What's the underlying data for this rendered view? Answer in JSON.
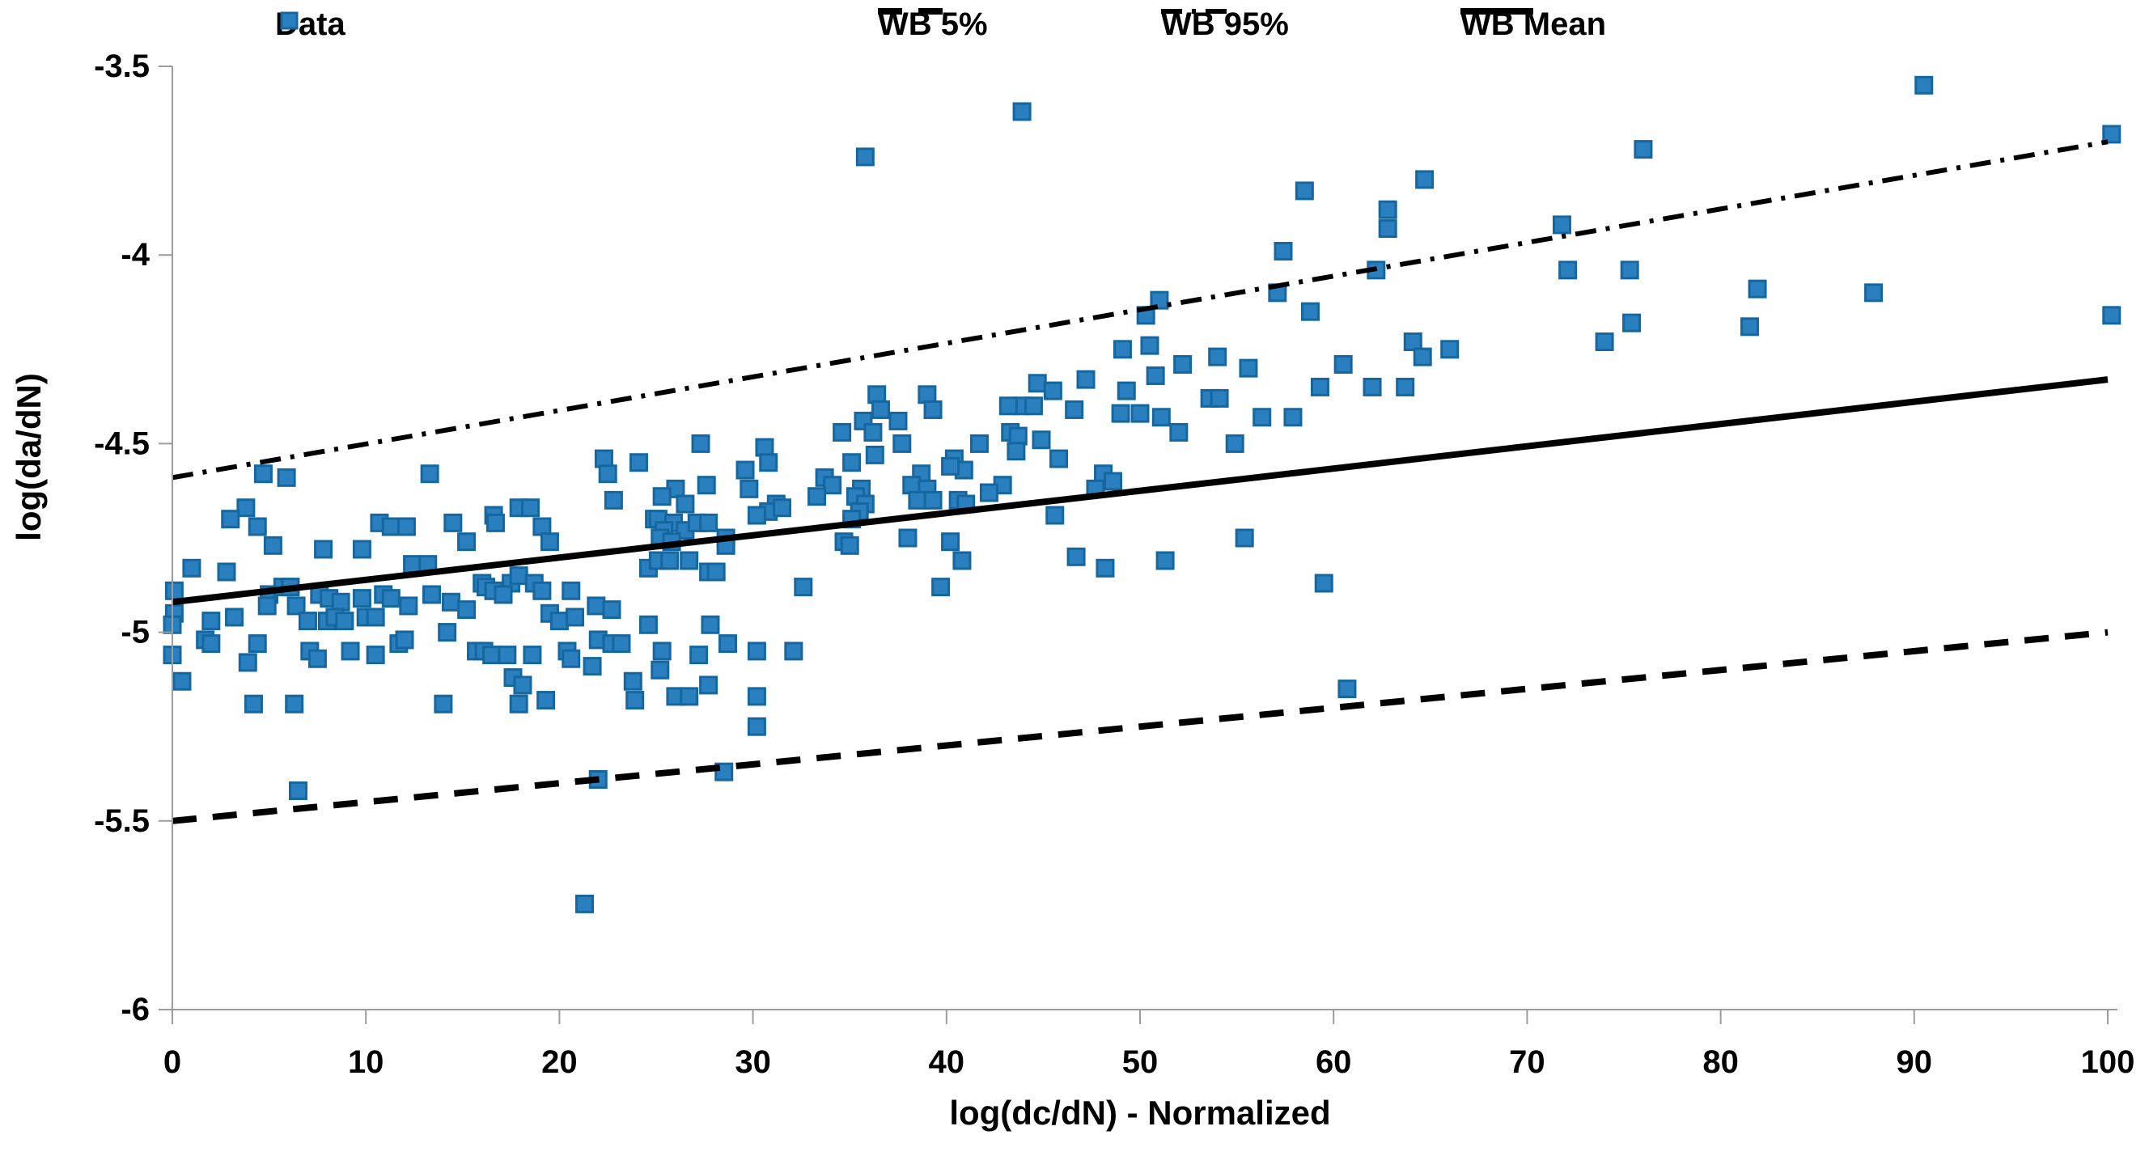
{
  "chart_data": {
    "type": "scatter",
    "title": "",
    "xlabel": "log(dc/dN) - Normalized",
    "ylabel": "log(da/dN)",
    "xlim": [
      0,
      100
    ],
    "ylim": [
      -6,
      -3.5
    ],
    "xtick_labels": [
      "0",
      "10",
      "20",
      "30",
      "40",
      "50",
      "60",
      "70",
      "80",
      "90",
      "100"
    ],
    "xticks": [
      0,
      10,
      20,
      30,
      40,
      50,
      60,
      70,
      80,
      90,
      100
    ],
    "ytick_labels": [
      "-3.5",
      "-4",
      "-4.5",
      "-5",
      "-5.5",
      "-6"
    ],
    "yticks": [
      -3.5,
      -4,
      -4.5,
      -5,
      -5.5,
      -6
    ],
    "grid": false,
    "legend_position": "top",
    "axis_color": "#9c9c9c",
    "text_color": "#000000",
    "series": [
      {
        "name": "Data",
        "kind": "scatter",
        "marker": "square",
        "marker_fill": "#2a7fbe",
        "marker_edge": "#16679f",
        "points": [
          [
            4.7,
            -4.58
          ],
          [
            5.9,
            -4.59
          ],
          [
            13.3,
            -4.58
          ],
          [
            22.3,
            -4.54
          ],
          [
            24.1,
            -4.55
          ],
          [
            22.5,
            -4.58
          ],
          [
            3.8,
            -4.67
          ],
          [
            3.0,
            -4.7
          ],
          [
            4.4,
            -4.72
          ],
          [
            5.2,
            -4.77
          ],
          [
            7.8,
            -4.78
          ],
          [
            9.8,
            -4.78
          ],
          [
            1.0,
            -4.83
          ],
          [
            2.8,
            -4.84
          ],
          [
            10.7,
            -4.71
          ],
          [
            11.3,
            -4.72
          ],
          [
            12.1,
            -4.72
          ],
          [
            12.4,
            -4.82
          ],
          [
            13.2,
            -4.82
          ],
          [
            14.5,
            -4.71
          ],
          [
            15.2,
            -4.76
          ],
          [
            16.6,
            -4.69
          ],
          [
            16.7,
            -4.71
          ],
          [
            17.9,
            -4.67
          ],
          [
            18.5,
            -4.67
          ],
          [
            19.1,
            -4.72
          ],
          [
            19.5,
            -4.76
          ],
          [
            0.1,
            -4.89
          ],
          [
            0.1,
            -4.95
          ],
          [
            0.0,
            -4.98
          ],
          [
            5.0,
            -4.9
          ],
          [
            5.7,
            -4.88
          ],
          [
            6.1,
            -4.88
          ],
          [
            4.9,
            -4.93
          ],
          [
            6.4,
            -4.93
          ],
          [
            7.6,
            -4.9
          ],
          [
            8.1,
            -4.91
          ],
          [
            8.7,
            -4.92
          ],
          [
            9.8,
            -4.91
          ],
          [
            10.9,
            -4.9
          ],
          [
            11.3,
            -4.91
          ],
          [
            12.2,
            -4.93
          ],
          [
            13.4,
            -4.9
          ],
          [
            14.4,
            -4.92
          ],
          [
            15.2,
            -4.94
          ],
          [
            2.0,
            -4.97
          ],
          [
            3.2,
            -4.96
          ],
          [
            7.0,
            -4.97
          ],
          [
            8.0,
            -4.97
          ],
          [
            8.4,
            -4.96
          ],
          [
            8.9,
            -4.97
          ],
          [
            10.0,
            -4.96
          ],
          [
            10.5,
            -4.96
          ],
          [
            14.2,
            -5.0
          ],
          [
            16.0,
            -4.87
          ],
          [
            16.2,
            -4.88
          ],
          [
            16.6,
            -4.89
          ],
          [
            17.5,
            -4.87
          ],
          [
            17.9,
            -4.85
          ],
          [
            18.7,
            -4.87
          ],
          [
            19.1,
            -4.89
          ],
          [
            17.1,
            -4.9
          ],
          [
            19.5,
            -4.95
          ],
          [
            20.0,
            -4.97
          ],
          [
            20.6,
            -4.89
          ],
          [
            20.8,
            -4.96
          ],
          [
            0.0,
            -5.06
          ],
          [
            0.5,
            -5.13
          ],
          [
            1.7,
            -5.02
          ],
          [
            2.0,
            -5.03
          ],
          [
            4.4,
            -5.03
          ],
          [
            3.9,
            -5.08
          ],
          [
            4.2,
            -5.19
          ],
          [
            6.3,
            -5.19
          ],
          [
            7.1,
            -5.05
          ],
          [
            7.5,
            -5.07
          ],
          [
            9.2,
            -5.05
          ],
          [
            10.5,
            -5.06
          ],
          [
            11.7,
            -5.03
          ],
          [
            12.0,
            -5.02
          ],
          [
            14.0,
            -5.19
          ],
          [
            15.7,
            -5.05
          ],
          [
            16.1,
            -5.05
          ],
          [
            16.5,
            -5.06
          ],
          [
            17.3,
            -5.06
          ],
          [
            18.6,
            -5.06
          ],
          [
            17.6,
            -5.12
          ],
          [
            18.1,
            -5.14
          ],
          [
            17.9,
            -5.19
          ],
          [
            19.3,
            -5.18
          ],
          [
            20.4,
            -5.05
          ],
          [
            20.6,
            -5.07
          ],
          [
            6.5,
            -5.42
          ],
          [
            22.8,
            -4.65
          ],
          [
            24.9,
            -4.7
          ],
          [
            21.9,
            -4.93
          ],
          [
            22.7,
            -4.94
          ],
          [
            22.0,
            -5.02
          ],
          [
            22.7,
            -5.03
          ],
          [
            23.2,
            -5.03
          ],
          [
            21.7,
            -5.09
          ],
          [
            23.8,
            -5.13
          ],
          [
            23.9,
            -5.18
          ],
          [
            24.6,
            -4.83
          ],
          [
            24.6,
            -4.98
          ],
          [
            21.3,
            -5.72
          ],
          [
            22.0,
            -5.39
          ],
          [
            36.4,
            -4.37
          ],
          [
            39.0,
            -4.37
          ],
          [
            39.3,
            -4.41
          ],
          [
            36.6,
            -4.41
          ],
          [
            35.7,
            -4.44
          ],
          [
            37.5,
            -4.44
          ],
          [
            34.6,
            -4.47
          ],
          [
            36.2,
            -4.47
          ],
          [
            37.7,
            -4.5
          ],
          [
            27.3,
            -4.5
          ],
          [
            44.7,
            -4.34
          ],
          [
            43.9,
            -4.4
          ],
          [
            44.5,
            -4.4
          ],
          [
            45.5,
            -4.36
          ],
          [
            47.2,
            -4.33
          ],
          [
            43.2,
            -4.4
          ],
          [
            46.6,
            -4.41
          ],
          [
            49.3,
            -4.36
          ],
          [
            49.0,
            -4.42
          ],
          [
            50.0,
            -4.42
          ],
          [
            43.3,
            -4.47
          ],
          [
            43.7,
            -4.48
          ],
          [
            44.9,
            -4.49
          ],
          [
            41.7,
            -4.5
          ],
          [
            43.6,
            -4.52
          ],
          [
            45.8,
            -4.54
          ],
          [
            40.4,
            -4.54
          ],
          [
            40.9,
            -4.57
          ],
          [
            48.1,
            -4.58
          ],
          [
            48.6,
            -4.6
          ],
          [
            30.6,
            -4.51
          ],
          [
            30.8,
            -4.55
          ],
          [
            29.6,
            -4.57
          ],
          [
            29.8,
            -4.62
          ],
          [
            27.6,
            -4.61
          ],
          [
            26.0,
            -4.62
          ],
          [
            26.5,
            -4.66
          ],
          [
            25.3,
            -4.64
          ],
          [
            31.2,
            -4.66
          ],
          [
            30.8,
            -4.68
          ],
          [
            31.5,
            -4.67
          ],
          [
            30.2,
            -4.69
          ],
          [
            35.1,
            -4.55
          ],
          [
            36.3,
            -4.53
          ],
          [
            33.7,
            -4.59
          ],
          [
            34.1,
            -4.61
          ],
          [
            33.3,
            -4.64
          ],
          [
            35.6,
            -4.62
          ],
          [
            35.3,
            -4.64
          ],
          [
            35.8,
            -4.66
          ],
          [
            35.5,
            -4.68
          ],
          [
            35.1,
            -4.7
          ],
          [
            38.7,
            -4.58
          ],
          [
            38.2,
            -4.61
          ],
          [
            39.0,
            -4.62
          ],
          [
            38.5,
            -4.65
          ],
          [
            39.3,
            -4.65
          ],
          [
            40.2,
            -4.56
          ],
          [
            42.9,
            -4.61
          ],
          [
            42.2,
            -4.63
          ],
          [
            40.6,
            -4.65
          ],
          [
            41.0,
            -4.66
          ],
          [
            25.1,
            -4.7
          ],
          [
            25.9,
            -4.71
          ],
          [
            25.4,
            -4.73
          ],
          [
            26.5,
            -4.73
          ],
          [
            27.1,
            -4.71
          ],
          [
            27.7,
            -4.71
          ],
          [
            25.2,
            -4.75
          ],
          [
            25.8,
            -4.76
          ],
          [
            25.1,
            -4.81
          ],
          [
            25.7,
            -4.81
          ],
          [
            26.7,
            -4.81
          ],
          [
            28.6,
            -4.75
          ],
          [
            28.6,
            -4.77
          ],
          [
            27.7,
            -4.84
          ],
          [
            28.1,
            -4.84
          ],
          [
            32.6,
            -4.88
          ],
          [
            34.7,
            -4.76
          ],
          [
            35.0,
            -4.77
          ],
          [
            38.0,
            -4.75
          ],
          [
            40.2,
            -4.76
          ],
          [
            40.8,
            -4.81
          ],
          [
            39.7,
            -4.88
          ],
          [
            46.7,
            -4.8
          ],
          [
            48.2,
            -4.83
          ],
          [
            45.6,
            -4.69
          ],
          [
            47.7,
            -4.62
          ],
          [
            27.8,
            -4.98
          ],
          [
            25.3,
            -5.05
          ],
          [
            27.2,
            -5.06
          ],
          [
            28.7,
            -5.03
          ],
          [
            30.2,
            -5.05
          ],
          [
            32.1,
            -5.05
          ],
          [
            25.2,
            -5.1
          ],
          [
            27.7,
            -5.14
          ],
          [
            26.0,
            -5.17
          ],
          [
            26.7,
            -5.17
          ],
          [
            30.2,
            -5.17
          ],
          [
            30.2,
            -5.25
          ],
          [
            28.5,
            -5.37
          ],
          [
            35.8,
            -3.74
          ],
          [
            43.9,
            -3.62
          ],
          [
            50.3,
            -4.16
          ],
          [
            49.1,
            -4.25
          ],
          [
            50.5,
            -4.24
          ],
          [
            58.5,
            -3.83
          ],
          [
            64.7,
            -3.8
          ],
          [
            62.8,
            -3.88
          ],
          [
            62.8,
            -3.93
          ],
          [
            57.4,
            -3.99
          ],
          [
            62.2,
            -4.04
          ],
          [
            71.8,
            -3.92
          ],
          [
            57.1,
            -4.1
          ],
          [
            58.8,
            -4.15
          ],
          [
            51.0,
            -4.12
          ],
          [
            72.1,
            -4.04
          ],
          [
            75.3,
            -4.04
          ],
          [
            75.4,
            -4.18
          ],
          [
            74.0,
            -4.23
          ],
          [
            64.1,
            -4.23
          ],
          [
            64.6,
            -4.27
          ],
          [
            66.0,
            -4.25
          ],
          [
            52.2,
            -4.29
          ],
          [
            50.8,
            -4.32
          ],
          [
            54.0,
            -4.27
          ],
          [
            55.6,
            -4.3
          ],
          [
            60.5,
            -4.29
          ],
          [
            59.3,
            -4.35
          ],
          [
            62.0,
            -4.35
          ],
          [
            63.7,
            -4.35
          ],
          [
            53.6,
            -4.38
          ],
          [
            54.1,
            -4.38
          ],
          [
            51.1,
            -4.43
          ],
          [
            52.0,
            -4.47
          ],
          [
            56.3,
            -4.43
          ],
          [
            57.9,
            -4.43
          ],
          [
            54.9,
            -4.5
          ],
          [
            55.4,
            -4.75
          ],
          [
            51.3,
            -4.81
          ],
          [
            59.5,
            -4.87
          ],
          [
            60.7,
            -5.15
          ],
          [
            76.0,
            -3.72
          ],
          [
            90.5,
            -3.55
          ],
          [
            81.9,
            -4.09
          ],
          [
            87.9,
            -4.1
          ],
          [
            81.5,
            -4.19
          ],
          [
            100.2,
            -3.68
          ],
          [
            100.2,
            -4.16
          ]
        ]
      },
      {
        "name": "WB 5%",
        "kind": "line",
        "style": "dashed",
        "color": "#000000",
        "points": [
          [
            0,
            -5.5
          ],
          [
            100,
            -5.0
          ]
        ]
      },
      {
        "name": "WB 95%",
        "kind": "line",
        "style": "dashdot",
        "color": "#000000",
        "points": [
          [
            0,
            -4.59
          ],
          [
            100,
            -3.7
          ]
        ]
      },
      {
        "name": "WB Mean",
        "kind": "line",
        "style": "solid",
        "color": "#000000",
        "points": [
          [
            0,
            -4.92
          ],
          [
            100,
            -4.33
          ]
        ]
      }
    ]
  }
}
